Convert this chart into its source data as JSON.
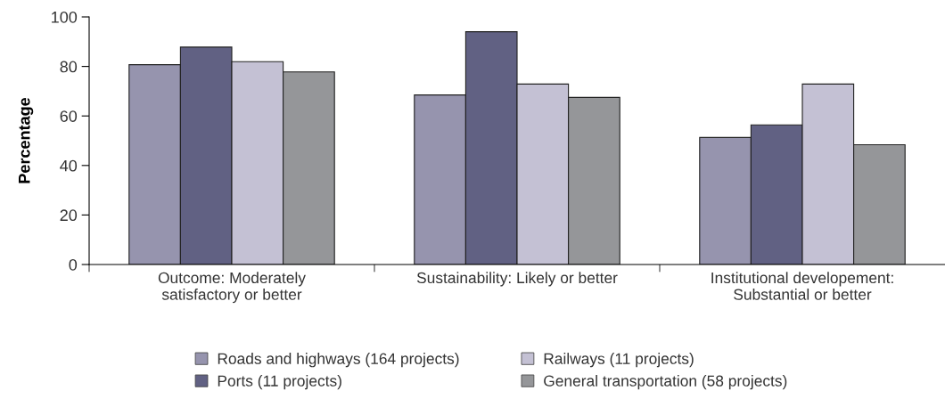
{
  "chart_data": {
    "type": "bar",
    "ylabel": "Percentage",
    "categories": [
      "Outcome: Moderately\nsatisfactory or better",
      "Sustainability: Likely or better",
      "Institutional developement:\nSubstantial or better"
    ],
    "series": [
      {
        "name": "Roads and highways (164 projects)",
        "color": "#9694ae",
        "values": [
          80.7,
          68.5,
          51.3
        ]
      },
      {
        "name": "Ports (11 projects)",
        "color": "#616183",
        "values": [
          87.8,
          94.0,
          56.4
        ]
      },
      {
        "name": "Railways (11 projects)",
        "color": "#c4c1d4",
        "values": [
          81.9,
          72.9,
          72.9
        ]
      },
      {
        "name": "General transportation (58 projects)",
        "color": "#959699",
        "values": [
          77.8,
          67.5,
          48.4
        ]
      }
    ],
    "ylim": [
      0,
      100
    ],
    "yticks": [
      0,
      20,
      40,
      60,
      80,
      100
    ],
    "grid": false,
    "legend": "bottom"
  }
}
